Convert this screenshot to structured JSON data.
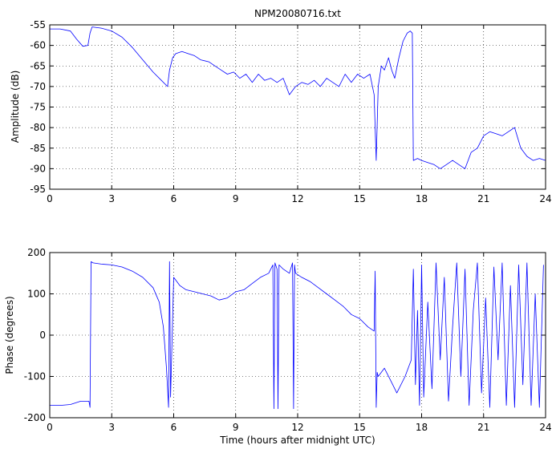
{
  "chart_data": [
    {
      "type": "line",
      "title": "NPM20080716.txt",
      "xlabel": "",
      "ylabel": "Amplitude (dB)",
      "xlim": [
        0,
        24
      ],
      "ylim": [
        -95,
        -55
      ],
      "xticks": [
        0,
        3,
        6,
        9,
        12,
        15,
        18,
        21,
        24
      ],
      "yticks": [
        -55,
        -60,
        -65,
        -70,
        -75,
        -80,
        -85,
        -90,
        -95
      ],
      "grid": true,
      "color": "#0000ff",
      "series": [
        {
          "x": [
            0,
            0.5,
            1.0,
            1.3,
            1.6,
            1.85,
            1.95,
            2.05,
            2.5,
            3.0,
            3.5,
            4.0,
            4.5,
            5.0,
            5.4,
            5.7,
            5.8,
            5.95,
            6.1,
            6.4,
            6.7,
            7.0,
            7.3,
            7.7,
            8.0,
            8.3,
            8.6,
            8.9,
            9.2,
            9.5,
            9.8,
            10.1,
            10.4,
            10.7,
            11.0,
            11.3,
            11.6,
            11.9,
            12.2,
            12.5,
            12.8,
            13.1,
            13.4,
            13.7,
            14.0,
            14.3,
            14.6,
            14.9,
            15.2,
            15.5,
            15.7,
            15.8,
            15.9,
            16.05,
            16.2,
            16.4,
            16.55,
            16.7,
            16.9,
            17.1,
            17.3,
            17.45,
            17.55,
            17.6,
            17.8,
            18.0,
            18.3,
            18.6,
            18.9,
            19.2,
            19.5,
            19.8,
            20.1,
            20.4,
            20.7,
            21.0,
            21.3,
            21.6,
            21.9,
            22.2,
            22.5,
            22.8,
            23.1,
            23.4,
            23.7,
            24.0
          ],
          "values": [
            -56,
            -56,
            -56.5,
            -58.5,
            -60.2,
            -60,
            -57,
            -55.5,
            -55.8,
            -56.5,
            -58,
            -60.5,
            -63.5,
            -66.5,
            -68.5,
            -70,
            -66,
            -63,
            -62,
            -61.5,
            -62,
            -62.5,
            -63.5,
            -64,
            -65,
            -66,
            -67,
            -66.5,
            -68,
            -67,
            -69,
            -67,
            -68.5,
            -68,
            -69,
            -68,
            -72,
            -70,
            -69,
            -69.5,
            -68.5,
            -70,
            -68,
            -69,
            -70,
            -67,
            -69,
            -67,
            -68,
            -67,
            -72,
            -88,
            -70,
            -65,
            -66,
            -63,
            -66,
            -68,
            -63,
            -59,
            -57,
            -56.5,
            -57,
            -88,
            -87.5,
            -88,
            -88.5,
            -89,
            -90,
            -89,
            -88,
            -89,
            -90,
            -86,
            -85,
            -82,
            -81,
            -81.5,
            -82,
            -81,
            -80,
            -85,
            -87,
            -88,
            -87.5,
            -88
          ]
        }
      ]
    },
    {
      "type": "line",
      "title": "",
      "xlabel": "Time (hours after midnight UTC)",
      "ylabel": "Phase (degrees)",
      "xlim": [
        0,
        24
      ],
      "ylim": [
        -200,
        200
      ],
      "xticks": [
        0,
        3,
        6,
        9,
        12,
        15,
        18,
        21,
        24
      ],
      "yticks": [
        200,
        100,
        0,
        -100,
        -200
      ],
      "grid": true,
      "color": "#0000ff",
      "series": [
        {
          "x": [
            0,
            0.5,
            1.0,
            1.5,
            1.9,
            1.95,
            2.0,
            2.1,
            2.5,
            3.0,
            3.5,
            4.0,
            4.5,
            5.0,
            5.3,
            5.5,
            5.65,
            5.75,
            5.8,
            5.85,
            6.0,
            6.3,
            6.6,
            7.0,
            7.4,
            7.8,
            8.2,
            8.6,
            9.0,
            9.4,
            9.8,
            10.2,
            10.6,
            10.8,
            10.85,
            10.9,
            11.0,
            11.05,
            11.1,
            11.3,
            11.6,
            11.75,
            11.8,
            11.85,
            11.9,
            12.2,
            12.6,
            13.0,
            13.4,
            13.8,
            14.2,
            14.6,
            15.0,
            15.4,
            15.7,
            15.75,
            15.8,
            15.85,
            15.9,
            16.2,
            16.5,
            16.8,
            17.2,
            17.5,
            17.6,
            17.7,
            17.8,
            17.9,
            18.0,
            18.1,
            18.3,
            18.5,
            18.7,
            18.9,
            19.1,
            19.3,
            19.5,
            19.7,
            19.9,
            20.1,
            20.3,
            20.5,
            20.7,
            20.9,
            21.1,
            21.3,
            21.5,
            21.7,
            21.9,
            22.1,
            22.3,
            22.5,
            22.7,
            22.9,
            23.1,
            23.3,
            23.5,
            23.7,
            23.9
          ],
          "values": [
            -170,
            -170,
            -168,
            -160,
            -160,
            -175,
            178,
            175,
            172,
            170,
            165,
            155,
            140,
            115,
            80,
            20,
            -80,
            -175,
            178,
            -150,
            140,
            120,
            110,
            105,
            100,
            95,
            85,
            90,
            105,
            110,
            125,
            140,
            150,
            170,
            -178,
            175,
            160,
            -178,
            170,
            160,
            150,
            175,
            -178,
            170,
            150,
            140,
            130,
            115,
            100,
            85,
            70,
            50,
            40,
            20,
            10,
            155,
            -175,
            -90,
            -100,
            -80,
            -110,
            -140,
            -100,
            -60,
            160,
            -120,
            60,
            -170,
            170,
            -150,
            80,
            -130,
            175,
            -60,
            140,
            -160,
            20,
            175,
            -100,
            160,
            -170,
            60,
            175,
            -140,
            90,
            -175,
            165,
            -60,
            175,
            -170,
            120,
            -175,
            170,
            -120,
            175,
            -170,
            100,
            -175,
            170
          ]
        }
      ]
    }
  ]
}
